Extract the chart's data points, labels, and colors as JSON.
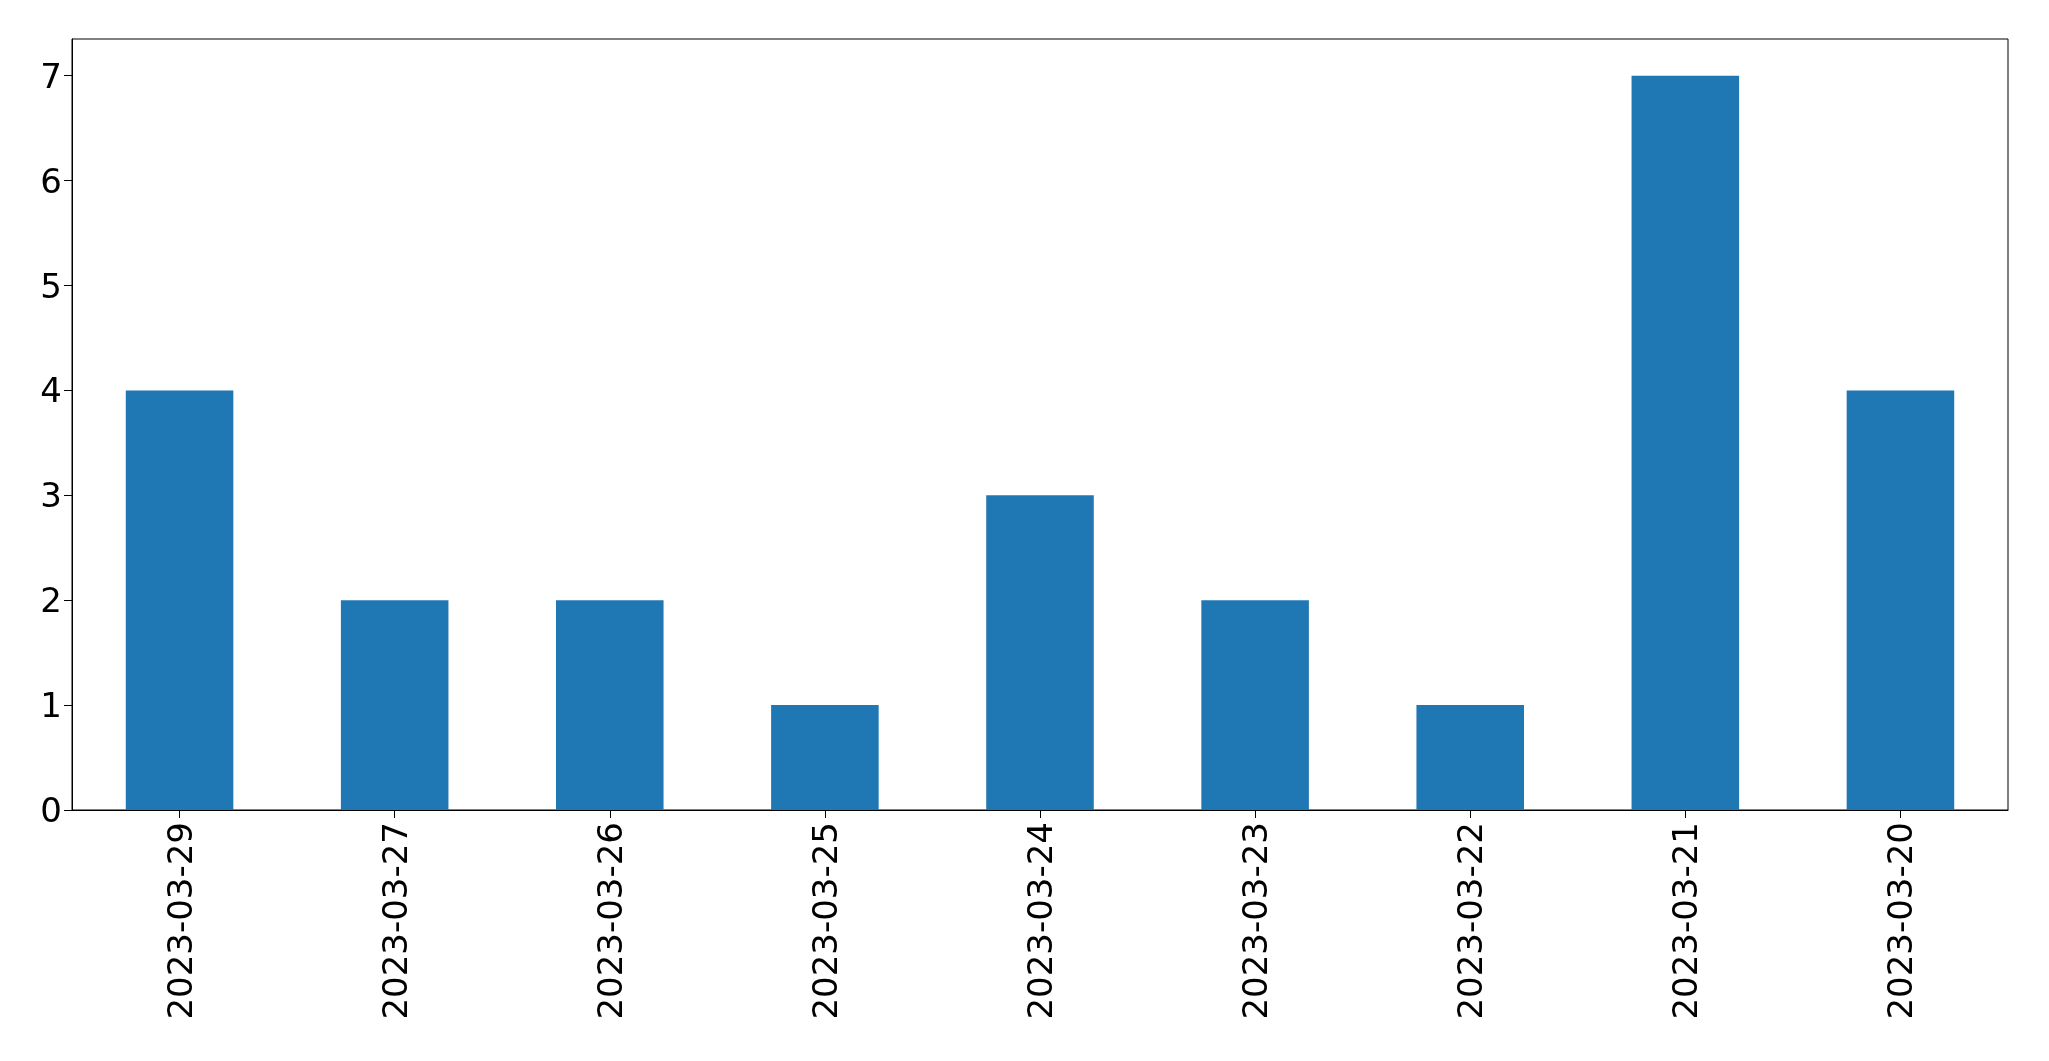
{
  "chart_data": {
    "type": "bar",
    "categories": [
      "2023-03-29",
      "2023-03-27",
      "2023-03-26",
      "2023-03-25",
      "2023-03-24",
      "2023-03-23",
      "2023-03-22",
      "2023-03-21",
      "2023-03-20"
    ],
    "values": [
      4,
      2,
      2,
      1,
      3,
      2,
      1,
      7,
      4
    ],
    "color": "#1f77b4",
    "ylim": [
      0,
      7.35
    ],
    "yticks": [
      0,
      1,
      2,
      3,
      4,
      5,
      6,
      7
    ]
  }
}
